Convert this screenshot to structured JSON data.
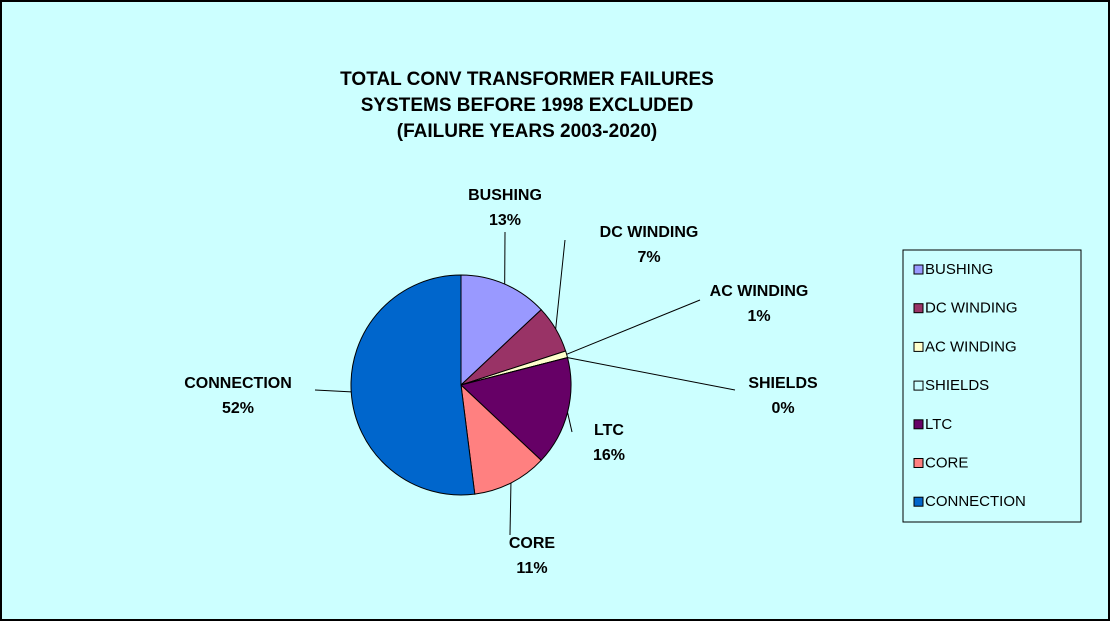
{
  "chart_data": {
    "type": "pie",
    "title": [
      "TOTAL CONV TRANSFORMER FAILURES",
      "SYSTEMS BEFORE 1998 EXCLUDED",
      "(FAILURE YEARS 2003-2020)"
    ],
    "categories": [
      "BUSHING",
      "DC WINDING",
      "AC WINDING",
      "SHIELDS",
      "LTC",
      "CORE",
      "CONNECTION"
    ],
    "values": [
      13,
      7,
      1,
      0,
      16,
      11,
      52
    ],
    "value_labels": [
      "13%",
      "7%",
      "1%",
      "0%",
      "16%",
      "11%",
      "52%"
    ],
    "colors": [
      "#9999ff",
      "#993366",
      "#ffffcc",
      "#ccffff",
      "#660066",
      "#ff8080",
      "#0066cc"
    ],
    "legend": "right"
  }
}
